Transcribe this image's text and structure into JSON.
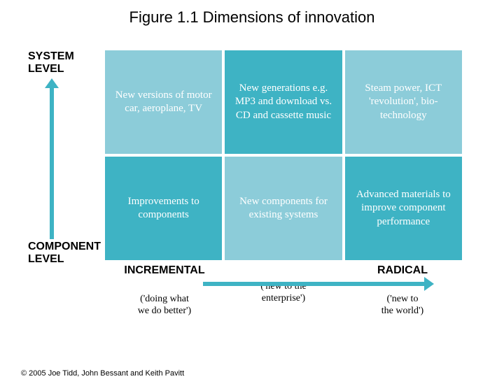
{
  "title": "Figure 1.1  Dimensions of innovation",
  "copyright": "© 2005 Joe Tidd, John Bessant and Keith Pavitt",
  "colors": {
    "cell_light": "#8cccd9",
    "cell_dark": "#3eb3c4",
    "arrow": "#3eb3c4",
    "background": "#ffffff",
    "text_on_cell": "#ffffff",
    "axis_text": "#000000"
  },
  "y_axis": {
    "top_label": "SYSTEM\nLEVEL",
    "bottom_label": "COMPONENT\nLEVEL"
  },
  "x_axis": {
    "cols": [
      {
        "main": "INCREMENTAL",
        "sub": "('doing what\nwe do better')"
      },
      {
        "main": "",
        "sub": "('new to the\nenterprise')"
      },
      {
        "main": "RADICAL",
        "sub": "('new to\nthe world')"
      }
    ]
  },
  "grid": {
    "rows": 2,
    "cols": 3,
    "cells": [
      {
        "text": "New versions of motor car, aeroplane, TV",
        "shade": "light"
      },
      {
        "text": "New generations e.g. MP3 and download vs. CD and cassette music",
        "shade": "dark"
      },
      {
        "text": "Steam power, ICT 'revolution', bio-technology",
        "shade": "light"
      },
      {
        "text": "Improvements to components",
        "shade": "dark"
      },
      {
        "text": "New components for existing systems",
        "shade": "light"
      },
      {
        "text": "Advanced materials to improve component performance",
        "shade": "dark"
      }
    ]
  }
}
